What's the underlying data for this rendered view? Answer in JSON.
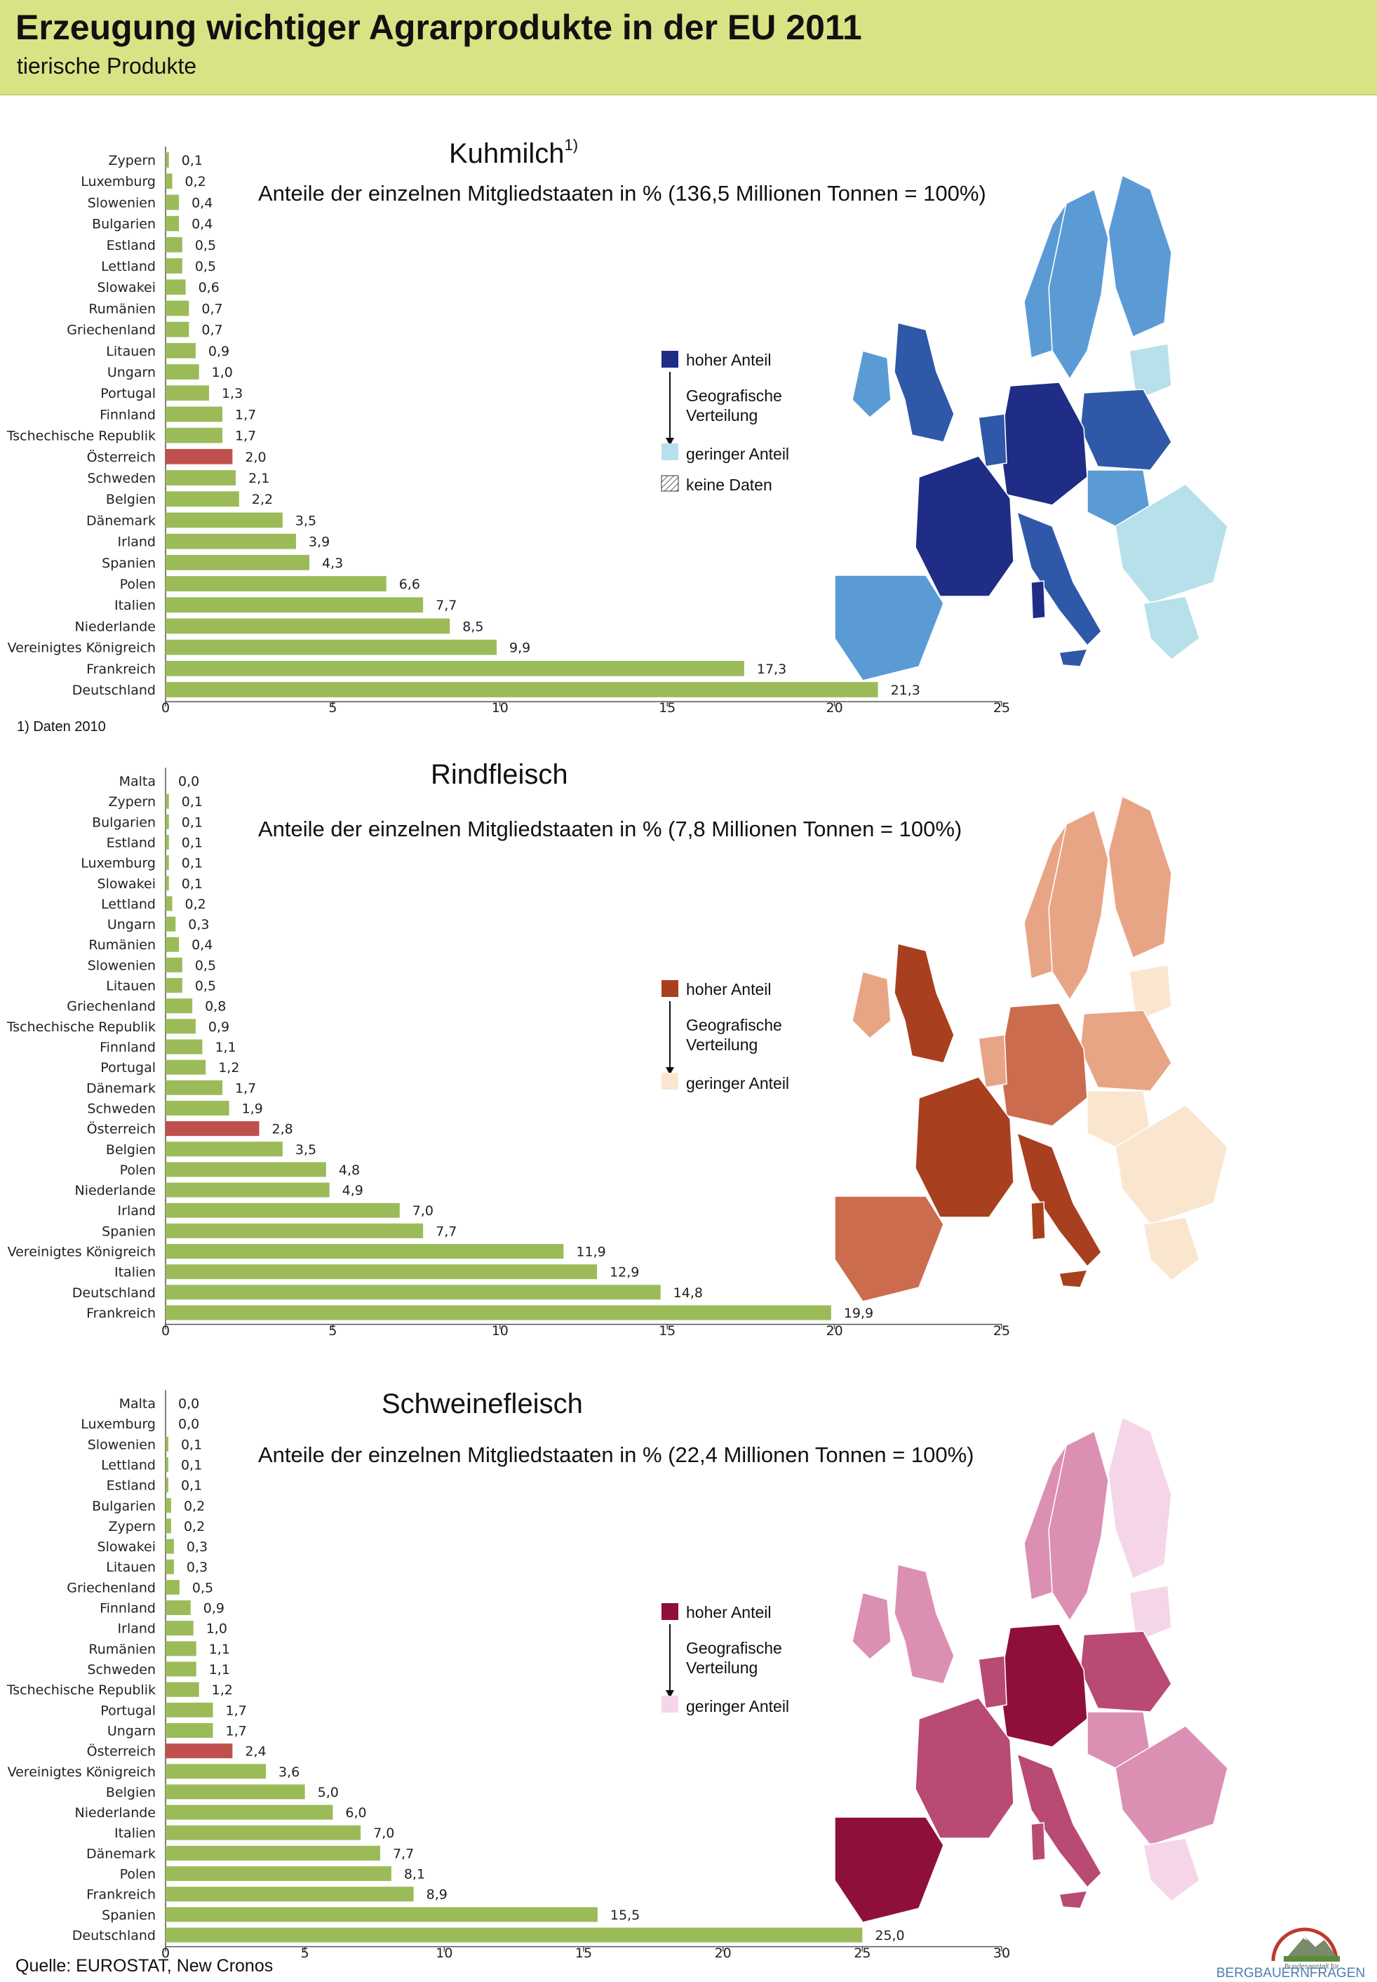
{
  "header": {
    "title": "Erzeugung wichtiger Agrarprodukte in der EU 2011",
    "subtitle": "tierische Produkte"
  },
  "colors": {
    "bar": "#9bbb59",
    "highlight": "#c0504d",
    "header_bg": "#d9e385"
  },
  "footnote": "1) Daten 2010",
  "source": "Quelle: EUROSTAT, New Cronos",
  "logo": {
    "small_text": "Bundesanstalt für",
    "name": "BERGBAUERNFRAGEN"
  },
  "panels": [
    {
      "title": "Kuhmilch",
      "title_sup": "1)",
      "subtitle": "Anteile der einzelnen Mitgliedstaaten in % (136,5 Millionen Tonnen  = 100%)",
      "legend": {
        "high": "hoher  Anteil",
        "geo1": "Geografische",
        "geo2": "Verteilung",
        "low": "geringer  Anteil",
        "nodata": "keine Daten",
        "color_high": "#1f2d86",
        "color_low": "#b7e1ea"
      },
      "map_colors": [
        "#1f2d86",
        "#2f58a8",
        "#5b9bd5",
        "#b7e1ea"
      ]
    },
    {
      "title": "Rindfleisch",
      "title_sup": "",
      "subtitle": "Anteile der einzelnen Mitgliedstaaten in % (7,8 Millionen Tonnen = 100%)",
      "legend": {
        "high": "hoher  Anteil",
        "geo1": "Geografische",
        "geo2": "Verteilung",
        "low": "geringer  Anteil",
        "nodata": "",
        "color_high": "#a83f1f",
        "color_low": "#fae6cf"
      },
      "map_colors": [
        "#a83f1f",
        "#cc6c4e",
        "#e8a585",
        "#fae6cf"
      ]
    },
    {
      "title": "Schweinefleisch",
      "title_sup": "",
      "subtitle": "Anteile der einzelnen Mitgliedstaaten in % (22,4 Millionen Tonnen = 100%)",
      "legend": {
        "high": "hoher Anteil",
        "geo1": "Geografische",
        "geo2": "Verteilung",
        "low": "geringer  Anteil",
        "nodata": "",
        "color_high": "#8e1038",
        "color_low": "#f5d6e8"
      },
      "map_colors": [
        "#8e1038",
        "#b84a74",
        "#db8fb3",
        "#f5d6e8"
      ]
    }
  ],
  "chart_data": [
    {
      "type": "bar",
      "orientation": "horizontal",
      "title": "Kuhmilch",
      "xlim": [
        0,
        25
      ],
      "xticks": [
        "0",
        "5",
        "10",
        "15",
        "20",
        "25"
      ],
      "highlight": "Österreich",
      "categories": [
        "Zypern",
        "Luxemburg",
        "Slowenien",
        "Bulgarien",
        "Estland",
        "Lettland",
        "Slowakei",
        "Rumänien",
        "Griechenland",
        "Litauen",
        "Ungarn",
        "Portugal",
        "Finnland",
        "Tschechische Republik",
        "Österreich",
        "Schweden",
        "Belgien",
        "Dänemark",
        "Irland",
        "Spanien",
        "Polen",
        "Italien",
        "Niederlande",
        "Vereinigtes Königreich",
        "Frankreich",
        "Deutschland"
      ],
      "values": [
        0.1,
        0.2,
        0.4,
        0.4,
        0.5,
        0.5,
        0.6,
        0.7,
        0.7,
        0.9,
        1.0,
        1.3,
        1.7,
        1.7,
        2.0,
        2.1,
        2.2,
        3.5,
        3.9,
        4.3,
        6.6,
        7.7,
        8.5,
        9.9,
        17.3,
        21.3
      ],
      "labels": [
        "0,1",
        "0,2",
        "0,4",
        "0,4",
        "0,5",
        "0,5",
        "0,6",
        "0,7",
        "0,7",
        "0,9",
        "1,0",
        "1,3",
        "1,7",
        "1,7",
        "2,0",
        "2,1",
        "2,2",
        "3,5",
        "3,9",
        "4,3",
        "6,6",
        "7,7",
        "8,5",
        "9,9",
        "17,3",
        "21,3"
      ]
    },
    {
      "type": "bar",
      "orientation": "horizontal",
      "title": "Rindfleisch",
      "xlim": [
        0,
        25
      ],
      "xticks": [
        "0",
        "5",
        "10",
        "15",
        "20",
        "25"
      ],
      "highlight": "Österreich",
      "categories": [
        "Malta",
        "Zypern",
        "Bulgarien",
        "Estland",
        "Luxemburg",
        "Slowakei",
        "Lettland",
        "Ungarn",
        "Rumänien",
        "Slowenien",
        "Litauen",
        "Griechenland",
        "Tschechische Republik",
        "Finnland",
        "Portugal",
        "Dänemark",
        "Schweden",
        "Österreich",
        "Belgien",
        "Polen",
        "Niederlande",
        "Irland",
        "Spanien",
        "Vereinigtes Königreich",
        "Italien",
        "Deutschland",
        "Frankreich"
      ],
      "values": [
        0.0,
        0.1,
        0.1,
        0.1,
        0.1,
        0.1,
        0.2,
        0.3,
        0.4,
        0.5,
        0.5,
        0.8,
        0.9,
        1.1,
        1.2,
        1.7,
        1.9,
        2.8,
        3.5,
        4.8,
        4.9,
        7.0,
        7.7,
        11.9,
        12.9,
        14.8,
        19.9
      ],
      "labels": [
        "0,0",
        "0,1",
        "0,1",
        "0,1",
        "0,1",
        "0,1",
        "0,2",
        "0,3",
        "0,4",
        "0,5",
        "0,5",
        "0,8",
        "0,9",
        "1,1",
        "1,2",
        "1,7",
        "1,9",
        "2,8",
        "3,5",
        "4,8",
        "4,9",
        "7,0",
        "7,7",
        "11,9",
        "12,9",
        "14,8",
        "19,9"
      ]
    },
    {
      "type": "bar",
      "orientation": "horizontal",
      "title": "Schweinefleisch",
      "xlim": [
        0,
        30
      ],
      "xticks": [
        "0",
        "5",
        "10",
        "15",
        "20",
        "25",
        "30"
      ],
      "highlight": "Österreich",
      "categories": [
        "Malta",
        "Luxemburg",
        "Slowenien",
        "Lettland",
        "Estland",
        "Bulgarien",
        "Zypern",
        "Slowakei",
        "Litauen",
        "Griechenland",
        "Finnland",
        "Irland",
        "Rumänien",
        "Schweden",
        "Tschechische Republik",
        "Portugal",
        "Ungarn",
        "Österreich",
        "Vereinigtes Königreich",
        "Belgien",
        "Niederlande",
        "Italien",
        "Dänemark",
        "Polen",
        "Frankreich",
        "Spanien",
        "Deutschland"
      ],
      "values": [
        0.0,
        0.0,
        0.1,
        0.1,
        0.1,
        0.2,
        0.2,
        0.3,
        0.3,
        0.5,
        0.9,
        1.0,
        1.1,
        1.1,
        1.2,
        1.7,
        1.7,
        2.4,
        3.6,
        5.0,
        6.0,
        7.0,
        7.7,
        8.1,
        8.9,
        15.5,
        25.0
      ],
      "labels": [
        "0,0",
        "0,0",
        "0,1",
        "0,1",
        "0,1",
        "0,2",
        "0,2",
        "0,3",
        "0,3",
        "0,5",
        "0,9",
        "1,0",
        "1,1",
        "1,1",
        "1,2",
        "1,7",
        "1,7",
        "2,4",
        "3,6",
        "5,0",
        "6,0",
        "7,0",
        "7,7",
        "8,1",
        "8,9",
        "15,5",
        "25,0"
      ]
    }
  ]
}
